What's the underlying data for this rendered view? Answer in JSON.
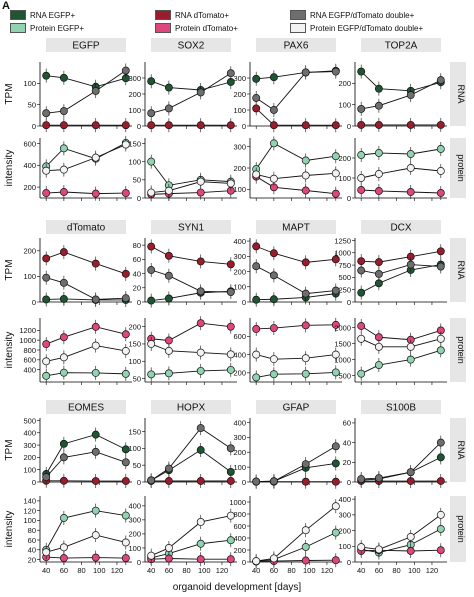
{
  "panel_label": "A",
  "legend": [
    {
      "label": "RNA EGFP+",
      "color": "#1e5631"
    },
    {
      "label": "RNA dTomato+",
      "color": "#9b1c2c"
    },
    {
      "label": "RNA EGFP/dTomato double+",
      "color": "#6e6e6e"
    },
    {
      "label": "Protein EGFP+",
      "color": "#8fd3b0"
    },
    {
      "label": "Protein dTomato+",
      "color": "#e0457b"
    },
    {
      "label": "Protein EGFP/dTomato double+",
      "color": "#f2f2f2"
    }
  ],
  "row_labels": {
    "rna": "RNA",
    "protein": "protein"
  },
  "ylabels": {
    "tpm": "TPM",
    "intensity": "intensity"
  },
  "xlabel": "organoid development [days]",
  "x_ticks": [
    "40",
    "60",
    "80",
    "100",
    "120"
  ],
  "chart_data": [
    {
      "type": "line",
      "title": "EGFP",
      "row": "RNA",
      "ylabel": "TPM",
      "ylim": [
        0,
        150
      ],
      "yticks": [
        0,
        50,
        100
      ],
      "x": [
        40,
        60,
        96,
        130
      ],
      "series": [
        {
          "name": "RNA EGFP+",
          "values": [
            118,
            113,
            92,
            112
          ]
        },
        {
          "name": "RNA dTomato+",
          "values": [
            2,
            2,
            2,
            2
          ]
        },
        {
          "name": "RNA EGFP/dTomato double+",
          "values": [
            30,
            35,
            82,
            130
          ]
        }
      ]
    },
    {
      "type": "line",
      "title": "SOX2",
      "row": "RNA",
      "ylabel": "",
      "ylim": [
        0,
        400
      ],
      "yticks": [
        0,
        100,
        200,
        300
      ],
      "x": [
        40,
        60,
        96,
        130
      ],
      "series": [
        {
          "name": "RNA EGFP+",
          "values": [
            280,
            240,
            225,
            275
          ]
        },
        {
          "name": "RNA dTomato+",
          "values": [
            5,
            5,
            5,
            5
          ]
        },
        {
          "name": "RNA EGFP/dTomato double+",
          "values": [
            80,
            110,
            210,
            330
          ]
        }
      ]
    },
    {
      "type": "line",
      "title": "PAX6",
      "row": "RNA",
      "ylabel": "",
      "ylim": [
        0,
        400
      ],
      "yticks": [
        0,
        100,
        200,
        300
      ],
      "x": [
        40,
        60,
        96,
        130
      ],
      "series": [
        {
          "name": "RNA EGFP+",
          "values": [
            295,
            305,
            335,
            345
          ]
        },
        {
          "name": "RNA dTomato+",
          "values": [
            110,
            5,
            5,
            5
          ]
        },
        {
          "name": "RNA EGFP/dTomato double+",
          "values": [
            175,
            100,
            335,
            340
          ]
        }
      ]
    },
    {
      "type": "line",
      "title": "TOP2A",
      "row": "RNA",
      "ylabel": "",
      "ylim": [
        0,
        300
      ],
      "yticks": [
        0,
        100,
        200
      ],
      "x": [
        40,
        60,
        96,
        130
      ],
      "series": [
        {
          "name": "RNA EGFP+",
          "values": [
            255,
            175,
            165,
            205
          ]
        },
        {
          "name": "RNA dTomato+",
          "values": [
            5,
            5,
            5,
            5
          ]
        },
        {
          "name": "RNA EGFP/dTomato double+",
          "values": [
            80,
            95,
            145,
            215
          ]
        }
      ]
    },
    {
      "type": "line",
      "title": "",
      "row": "protein",
      "ylabel": "intensity",
      "ylim": [
        100,
        650
      ],
      "yticks": [
        200,
        400,
        600
      ],
      "x": [
        40,
        60,
        96,
        130
      ],
      "series": [
        {
          "name": "Protein EGFP+",
          "values": [
            390,
            555,
            460,
            605
          ]
        },
        {
          "name": "Protein dTomato+",
          "values": [
            145,
            155,
            140,
            145
          ]
        },
        {
          "name": "Protein EGFP/dTomato double+",
          "values": [
            350,
            360,
            470,
            590
          ]
        }
      ]
    },
    {
      "type": "line",
      "title": "",
      "row": "protein",
      "ylabel": "",
      "ylim": [
        0,
        165
      ],
      "yticks": [
        0,
        50,
        100,
        150
      ],
      "x": [
        40,
        60,
        96,
        130
      ],
      "series": [
        {
          "name": "Protein EGFP+",
          "values": [
            100,
            35,
            50,
            45
          ]
        },
        {
          "name": "Protein dTomato+",
          "values": [
            10,
            12,
            15,
            20
          ]
        },
        {
          "name": "Protein EGFP/dTomato double+",
          "values": [
            15,
            20,
            45,
            40
          ]
        }
      ]
    },
    {
      "type": "line",
      "title": "",
      "row": "protein",
      "ylabel": "",
      "ylim": [
        60,
        340
      ],
      "yticks": [
        100,
        200,
        300
      ],
      "x": [
        40,
        60,
        96,
        130
      ],
      "series": [
        {
          "name": "Protein EGFP+",
          "values": [
            195,
            315,
            235,
            255
          ]
        },
        {
          "name": "Protein dTomato+",
          "values": [
            160,
            110,
            95,
            80
          ]
        },
        {
          "name": "Protein EGFP/dTomato double+",
          "values": [
            170,
            150,
            165,
            175
          ]
        }
      ]
    },
    {
      "type": "line",
      "title": "",
      "row": "protein",
      "ylabel": "",
      "ylim": [
        0,
        300
      ],
      "yticks": [
        0,
        100,
        200
      ],
      "x": [
        40,
        60,
        96,
        130
      ],
      "series": [
        {
          "name": "Protein EGFP+",
          "values": [
            215,
            225,
            220,
            245
          ]
        },
        {
          "name": "Protein dTomato+",
          "values": [
            40,
            35,
            30,
            25
          ]
        },
        {
          "name": "Protein EGFP/dTomato double+",
          "values": [
            100,
            120,
            150,
            135
          ]
        }
      ]
    },
    {
      "type": "line",
      "title": "dTomato",
      "row": "RNA",
      "ylabel": "TPM",
      "ylim": [
        0,
        250
      ],
      "yticks": [
        0,
        100,
        200
      ],
      "x": [
        40,
        60,
        96,
        130
      ],
      "series": [
        {
          "name": "RNA EGFP+",
          "values": [
            10,
            12,
            8,
            8
          ]
        },
        {
          "name": "RNA dTomato+",
          "values": [
            170,
            195,
            150,
            110
          ]
        },
        {
          "name": "RNA EGFP/dTomato double+",
          "values": [
            95,
            75,
            10,
            15
          ]
        }
      ]
    },
    {
      "type": "line",
      "title": "SYN1",
      "row": "RNA",
      "ylabel": "",
      "ylim": [
        0,
        90
      ],
      "yticks": [
        0,
        20,
        40,
        60,
        80
      ],
      "x": [
        40,
        60,
        96,
        130
      ],
      "series": [
        {
          "name": "RNA EGFP+",
          "values": [
            2,
            5,
            13,
            15
          ]
        },
        {
          "name": "RNA dTomato+",
          "values": [
            78,
            65,
            57,
            53
          ]
        },
        {
          "name": "RNA EGFP/dTomato double+",
          "values": [
            45,
            37,
            15,
            14
          ]
        }
      ]
    },
    {
      "type": "line",
      "title": "MAPT",
      "row": "RNA",
      "ylabel": "",
      "ylim": [
        0,
        420
      ],
      "yticks": [
        0,
        100,
        200,
        300,
        400
      ],
      "x": [
        40,
        60,
        96,
        130
      ],
      "series": [
        {
          "name": "RNA EGFP+",
          "values": [
            15,
            18,
            30,
            55
          ]
        },
        {
          "name": "RNA dTomato+",
          "values": [
            365,
            320,
            260,
            280
          ]
        },
        {
          "name": "RNA EGFP/dTomato double+",
          "values": [
            235,
            175,
            55,
            75
          ]
        }
      ]
    },
    {
      "type": "line",
      "title": "DCX",
      "row": "RNA",
      "ylabel": "",
      "ylim": [
        0,
        1300
      ],
      "yticks": [
        0,
        250,
        500,
        750,
        1000,
        1250
      ],
      "x": [
        40,
        60,
        96,
        130
      ],
      "series": [
        {
          "name": "RNA EGFP+",
          "values": [
            190,
            380,
            650,
            760
          ]
        },
        {
          "name": "RNA dTomato+",
          "values": [
            830,
            810,
            920,
            1030
          ]
        },
        {
          "name": "RNA EGFP/dTomato double+",
          "values": [
            640,
            570,
            760,
            720
          ]
        }
      ]
    },
    {
      "type": "line",
      "title": "",
      "row": "protein",
      "ylabel": "intensity",
      "ylim": [
        150,
        1450
      ],
      "yticks": [
        400,
        600,
        800,
        1000,
        1200
      ],
      "x": [
        40,
        60,
        96,
        130
      ],
      "series": [
        {
          "name": "Protein EGFP+",
          "values": [
            275,
            340,
            335,
            315
          ]
        },
        {
          "name": "Protein dTomato+",
          "values": [
            920,
            1060,
            1270,
            1120
          ]
        },
        {
          "name": "Protein EGFP/dTomato double+",
          "values": [
            570,
            650,
            890,
            780
          ]
        }
      ]
    },
    {
      "type": "line",
      "title": "",
      "row": "protein",
      "ylabel": "",
      "ylim": [
        40,
        225
      ],
      "yticks": [
        50,
        100,
        150,
        200
      ],
      "x": [
        40,
        60,
        96,
        130
      ],
      "series": [
        {
          "name": "Protein EGFP+",
          "values": [
            62,
            65,
            72,
            75
          ]
        },
        {
          "name": "Protein dTomato+",
          "values": [
            165,
            160,
            210,
            200
          ]
        },
        {
          "name": "Protein EGFP/dTomato double+",
          "values": [
            150,
            130,
            125,
            120
          ]
        }
      ]
    },
    {
      "type": "line",
      "title": "",
      "row": "protein",
      "ylabel": "",
      "ylim": [
        100,
        800
      ],
      "yticks": [
        200,
        400,
        600
      ],
      "x": [
        40,
        60,
        96,
        130
      ],
      "series": [
        {
          "name": "Protein EGFP+",
          "values": [
            150,
            185,
            190,
            205
          ]
        },
        {
          "name": "Protein dTomato+",
          "values": [
            680,
            690,
            720,
            725
          ]
        },
        {
          "name": "Protein EGFP/dTomato double+",
          "values": [
            400,
            350,
            360,
            400
          ]
        }
      ]
    },
    {
      "type": "line",
      "title": "",
      "row": "protein",
      "ylabel": "",
      "ylim": [
        300,
        2300
      ],
      "yticks": [
        500,
        1000,
        1500,
        2000
      ],
      "x": [
        40,
        60,
        96,
        130
      ],
      "series": [
        {
          "name": "Protein EGFP+",
          "values": [
            560,
            830,
            1000,
            1290
          ]
        },
        {
          "name": "Protein dTomato+",
          "values": [
            2050,
            1700,
            1620,
            1910
          ]
        },
        {
          "name": "Protein EGFP/dTomato double+",
          "values": [
            1650,
            1400,
            1400,
            1650
          ]
        }
      ]
    },
    {
      "type": "line",
      "title": "EOMES",
      "row": "RNA",
      "ylabel": "TPM",
      "ylim": [
        0,
        520
      ],
      "yticks": [
        0,
        100,
        200,
        300,
        400,
        500
      ],
      "x": [
        40,
        60,
        96,
        130
      ],
      "series": [
        {
          "name": "RNA EGFP+",
          "values": [
            65,
            310,
            385,
            265
          ]
        },
        {
          "name": "RNA dTomato+",
          "values": [
            10,
            10,
            8,
            8
          ]
        },
        {
          "name": "RNA EGFP/dTomato double+",
          "values": [
            40,
            200,
            245,
            160
          ]
        }
      ]
    },
    {
      "type": "line",
      "title": "HOPX",
      "row": "RNA",
      "ylabel": "",
      "ylim": [
        0,
        190
      ],
      "yticks": [
        0,
        50,
        100,
        150
      ],
      "x": [
        40,
        60,
        96,
        130
      ],
      "series": [
        {
          "name": "RNA EGFP+",
          "values": [
            5,
            35,
            95,
            30
          ]
        },
        {
          "name": "RNA dTomato+",
          "values": [
            3,
            3,
            3,
            3
          ]
        },
        {
          "name": "RNA EGFP/dTomato double+",
          "values": [
            5,
            40,
            160,
            100
          ]
        }
      ]
    },
    {
      "type": "line",
      "title": "GFAP",
      "row": "RNA",
      "ylabel": "",
      "ylim": [
        0,
        430
      ],
      "yticks": [
        0,
        100,
        200,
        300,
        400
      ],
      "x": [
        40,
        60,
        96,
        130
      ],
      "series": [
        {
          "name": "RNA EGFP+",
          "values": [
            3,
            5,
            95,
            125
          ]
        },
        {
          "name": "RNA dTomato+",
          "values": [
            2,
            2,
            2,
            2
          ]
        },
        {
          "name": "RNA EGFP/dTomato double+",
          "values": [
            3,
            5,
            120,
            240
          ]
        }
      ]
    },
    {
      "type": "line",
      "title": "S100B",
      "row": "RNA",
      "ylabel": "",
      "ylim": [
        0,
        65
      ],
      "yticks": [
        0,
        20,
        40,
        60
      ],
      "x": [
        40,
        60,
        96,
        130
      ],
      "series": [
        {
          "name": "RNA EGFP+",
          "values": [
            2,
            3,
            10,
            25
          ]
        },
        {
          "name": "RNA dTomato+",
          "values": [
            1,
            1,
            1,
            1
          ]
        },
        {
          "name": "RNA EGFP/dTomato double+",
          "values": [
            3,
            4,
            10,
            40
          ]
        }
      ]
    },
    {
      "type": "line",
      "title": "",
      "row": "protein",
      "ylabel": "intensity",
      "ylim": [
        15,
        150
      ],
      "yticks": [
        20,
        40,
        60,
        80,
        100,
        120,
        140
      ],
      "x": [
        40,
        60,
        96,
        130
      ],
      "series": [
        {
          "name": "Protein EGFP+",
          "values": [
            40,
            105,
            120,
            110
          ]
        },
        {
          "name": "Protein dTomato+",
          "values": [
            25,
            23,
            24,
            23
          ]
        },
        {
          "name": "Protein EGFP/dTomato double+",
          "values": [
            35,
            45,
            70,
            55
          ]
        }
      ]
    },
    {
      "type": "line",
      "title": "",
      "row": "protein",
      "ylabel": "",
      "ylim": [
        0,
        470
      ],
      "yticks": [
        0,
        100,
        200,
        300,
        400
      ],
      "x": [
        40,
        60,
        96,
        130
      ],
      "series": [
        {
          "name": "Protein EGFP+",
          "values": [
            30,
            60,
            130,
            155
          ]
        },
        {
          "name": "Protein dTomato+",
          "values": [
            20,
            25,
            20,
            20
          ]
        },
        {
          "name": "Protein EGFP/dTomato double+",
          "values": [
            45,
            100,
            285,
            330
          ]
        }
      ]
    },
    {
      "type": "line",
      "title": "",
      "row": "protein",
      "ylabel": "",
      "ylim": [
        0,
        1100
      ],
      "yticks": [
        0,
        200,
        400,
        600,
        800,
        1000
      ],
      "x": [
        40,
        60,
        96,
        130
      ],
      "series": [
        {
          "name": "Protein EGFP+",
          "values": [
            10,
            40,
            250,
            490
          ]
        },
        {
          "name": "Protein dTomato+",
          "values": [
            10,
            15,
            25,
            30
          ]
        },
        {
          "name": "Protein EGFP/dTomato double+",
          "values": [
            15,
            60,
            530,
            930
          ]
        }
      ]
    },
    {
      "type": "line",
      "title": "",
      "row": "protein",
      "ylabel": "",
      "ylim": [
        0,
        420
      ],
      "yticks": [
        0,
        100,
        200,
        300,
        400
      ],
      "x": [
        40,
        60,
        96,
        130
      ],
      "series": [
        {
          "name": "Protein EGFP+",
          "values": [
            80,
            60,
            110,
            210
          ]
        },
        {
          "name": "Protein dTomato+",
          "values": [
            70,
            75,
            70,
            75
          ]
        },
        {
          "name": "Protein EGFP/dTomato double+",
          "values": [
            95,
            80,
            160,
            300
          ]
        }
      ]
    }
  ]
}
